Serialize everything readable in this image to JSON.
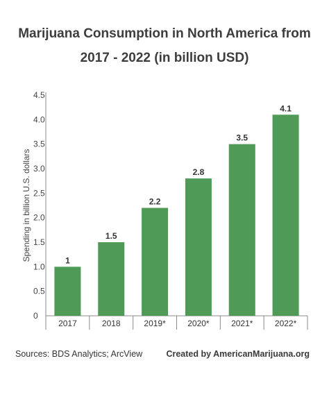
{
  "title_line1": "Marijuana Consumption in North America from",
  "title_line2": "2017 - 2022 (in billion USD)",
  "footer": {
    "sources": "Sources: BDS Analytics; ArcView",
    "credit": "Created by AmericanMarijuana.org"
  },
  "chart_data": {
    "type": "bar",
    "categories": [
      "2017",
      "2018",
      "2019*",
      "2020*",
      "2021*",
      "2022*"
    ],
    "values": [
      1.0,
      1.5,
      2.2,
      2.8,
      3.5,
      4.1
    ],
    "data_labels": [
      "1",
      "1.5",
      "2.2",
      "2.8",
      "3.5",
      "4.1"
    ],
    "yticks": [
      "0",
      "0.5",
      "1.0",
      "1.5",
      "2.0",
      "2.5",
      "3.0",
      "3.5",
      "4.0",
      "4.5"
    ],
    "ylim": [
      0,
      4.5
    ],
    "ylabel": "Spending in billion U.S. dollars",
    "xlabel": "",
    "grid": false,
    "bar_color": "#4e9a56"
  }
}
